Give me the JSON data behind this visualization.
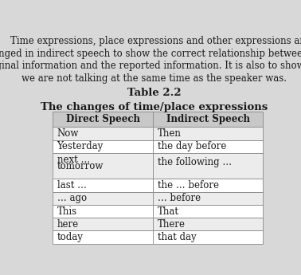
{
  "title": "Table 2.2",
  "subtitle": "The changes of time/place expressions",
  "col_headers": [
    "Direct Speech",
    "Indirect Speech"
  ],
  "rows": [
    [
      "Now",
      "Then"
    ],
    [
      "Yesterday",
      "the day before"
    ],
    [
      "next …\n\ntomorrow",
      "the following …"
    ],
    [
      "last …",
      "the … before"
    ],
    [
      "… ago",
      "… before"
    ],
    [
      "This",
      "That"
    ],
    [
      "here",
      "There"
    ],
    [
      "today",
      "that day"
    ]
  ],
  "paragraph_lines": [
    "    Time expressions, place expressions and other expressions are",
    "changed in indirect speech to show the correct relationship between the",
    "original information and the reported information. It is also to show that",
    "we are not talking at the same time as the speaker was."
  ],
  "header_bg": "#c8c8c8",
  "row_bg_odd": "#ececec",
  "row_bg_even": "#ffffff",
  "border_color": "#888888",
  "text_color": "#1a1a1a",
  "fig_bg": "#d8d8d8",
  "title_fontsize": 9.5,
  "subtitle_fontsize": 9.5,
  "cell_fontsize": 8.5,
  "header_fontsize": 8.5,
  "para_fontsize": 8.5
}
